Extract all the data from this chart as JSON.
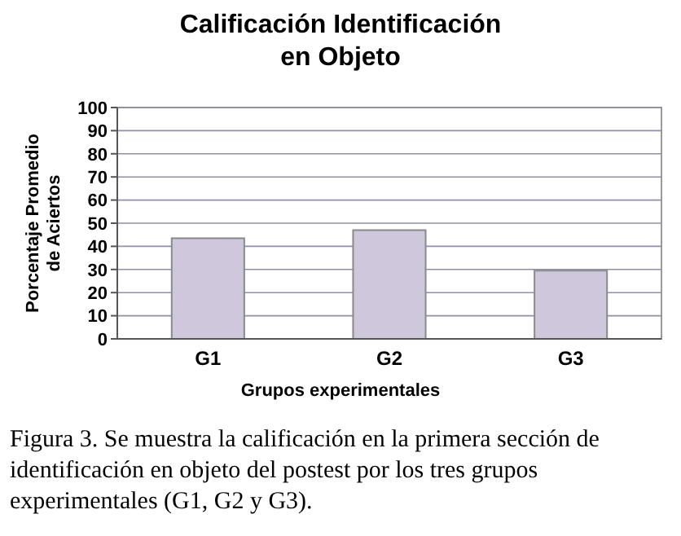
{
  "chart_data": {
    "type": "bar",
    "title": "Calificación Identificación\nen Objeto",
    "xlabel": "Grupos experimentales",
    "ylabel": "Porcentaje Promedio\nde Aciertos",
    "categories": [
      "G1",
      "G2",
      "G3"
    ],
    "values": [
      43.5,
      47,
      29.5
    ],
    "color": "#cfc8dc",
    "ylim": [
      0,
      100
    ],
    "yticks": [
      0,
      10,
      20,
      30,
      40,
      50,
      60,
      70,
      80,
      90,
      100
    ],
    "grid": "y",
    "annotations": [
      "Figura 3. Se muestra la calificación en la primera sección de identificación en objeto del postest por los tres grupos experimentales (G1, G2 y G3)."
    ]
  }
}
